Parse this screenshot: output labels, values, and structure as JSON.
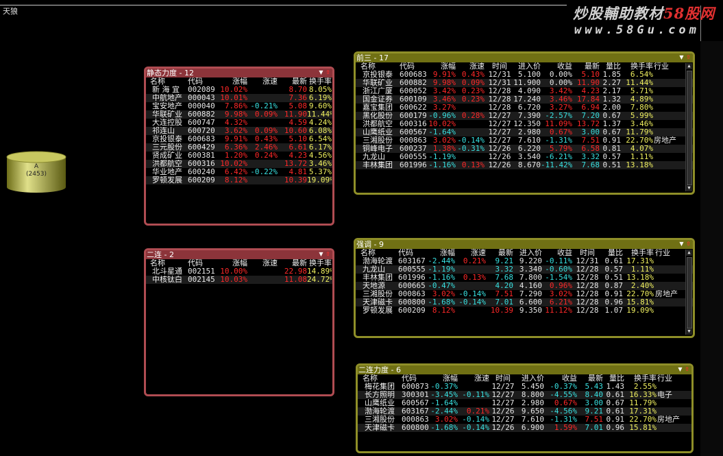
{
  "window": {
    "title": "天狼"
  },
  "watermark": {
    "line1_pre": "炒股輔助教材",
    "line1_brand": "58股网",
    "line2": "www.58Gu.com"
  },
  "source_node": {
    "label": "A",
    "count": "(2453)"
  },
  "colors": {
    "red_border": "#b04c52",
    "olive_border": "#8f8f28",
    "up": "#ff2828",
    "down": "#38e0e0"
  },
  "panels": [
    {
      "id": "jingtai",
      "title": "静态力度 - 12",
      "theme": "red",
      "columns": [
        "名称",
        "代码",
        "涨幅",
        "涨速",
        "最新",
        "换手率"
      ],
      "rows": [
        [
          "新 海 宜",
          "002089",
          "10.02%",
          "",
          "8.70",
          "8.05%"
        ],
        [
          "中航地产",
          "000043",
          "10.01%",
          "",
          "7.36",
          "6.19%"
        ],
        [
          "宝安地产",
          "000040",
          "7.86%",
          "-0.21%",
          "5.08",
          "9.60%"
        ],
        [
          "华联矿业",
          "600882",
          "9.98%",
          "0.09%",
          "11.90",
          "11.44%"
        ],
        [
          "大连控股",
          "600747",
          "4.32%",
          "",
          "4.59",
          "4.24%"
        ],
        [
          "祁连山",
          "600720",
          "3.62%",
          "0.09%",
          "10.60",
          "6.08%"
        ],
        [
          "京投银泰",
          "600683",
          "9.91%",
          "0.43%",
          "5.10",
          "6.54%"
        ],
        [
          "三元股份",
          "600429",
          "6.36%",
          "2.46%",
          "6.61",
          "6.17%"
        ],
        [
          "贤成矿业",
          "600381",
          "1.20%",
          "0.24%",
          "4.23",
          "4.56%"
        ],
        [
          "洪都航空",
          "600316",
          "10.02%",
          "",
          "13.72",
          "3.46%"
        ],
        [
          "华业地产",
          "600240",
          "6.42%",
          "-0.22%",
          "4.81",
          "5.37%"
        ],
        [
          "罗顿发展",
          "600209",
          "8.12%",
          "",
          "10.39",
          "19.09%"
        ]
      ]
    },
    {
      "id": "erlian",
      "title": "二连 - 2",
      "theme": "red",
      "columns": [
        "名称",
        "代码",
        "涨幅",
        "涨速",
        "最新",
        "换手率"
      ],
      "rows": [
        [
          "北斗星通",
          "002151",
          "10.00%",
          "",
          "22.98",
          "14.89%"
        ],
        [
          "中核钛白",
          "002145",
          "10.03%",
          "",
          "11.08",
          "24.72%"
        ]
      ]
    },
    {
      "id": "qiansan",
      "title": "前三 - 17",
      "theme": "olive",
      "columns": [
        "名称",
        "代码",
        "涨幅",
        "涨速",
        "时间",
        "进入价",
        "收益",
        "最新",
        "量比",
        "换手率",
        "行业"
      ],
      "rows": [
        [
          "京投银泰",
          "600683",
          "9.91%",
          "0.43%",
          "12/31",
          "5.100",
          "0.00%",
          "5.10",
          "1.85",
          "6.54%",
          ""
        ],
        [
          "华联矿业",
          "600882",
          "9.98%",
          "0.09%",
          "12/31",
          "11.900",
          "0.00%",
          "11.90",
          "2.27",
          "11.44%",
          ""
        ],
        [
          "浙江广厦",
          "600052",
          "3.42%",
          "0.23%",
          "12/28",
          "4.090",
          "3.42%",
          "4.23",
          "2.17",
          "5.71%",
          ""
        ],
        [
          "国金证券",
          "600109",
          "3.46%",
          "0.23%",
          "12/28",
          "17.240",
          "3.46%",
          "17.84",
          "1.32",
          "4.89%",
          ""
        ],
        [
          "嘉宝集团",
          "600622",
          "3.27%",
          "",
          "12/28",
          "6.720",
          "3.27%",
          "6.94",
          "2.00",
          "7.80%",
          ""
        ],
        [
          "黑化股份",
          "600179",
          "-0.96%",
          "0.28%",
          "12/27",
          "7.390",
          "-2.57%",
          "7.20",
          "0.67",
          "5.99%",
          ""
        ],
        [
          "洪都航空",
          "600316",
          "10.02%",
          "",
          "12/27",
          "12.350",
          "11.09%",
          "13.72",
          "1.37",
          "3.46%",
          ""
        ],
        [
          "山鹰纸业",
          "600567",
          "-1.64%",
          "",
          "12/27",
          "2.980",
          "0.67%",
          "3.00",
          "0.67",
          "11.79%",
          ""
        ],
        [
          "三湘股份",
          "000863",
          "3.02%",
          "-0.14%",
          "12/27",
          "7.610",
          "-1.31%",
          "7.51",
          "0.91",
          "22.70%",
          "房地产"
        ],
        [
          "铜峰电子",
          "600237",
          "1.38%",
          "-0.31%",
          "12/26",
          "6.220",
          "5.79%",
          "6.58",
          "0.81",
          "4.07%",
          ""
        ],
        [
          "九龙山",
          "600555",
          "-1.19%",
          "",
          "12/26",
          "3.540",
          "-6.21%",
          "3.32",
          "0.57",
          "1.11%",
          ""
        ],
        [
          "丰林集团",
          "601996",
          "-1.16%",
          "0.13%",
          "12/26",
          "8.670",
          "-11.42%",
          "7.68",
          "0.51",
          "13.18%",
          ""
        ]
      ]
    },
    {
      "id": "qiangdiao",
      "title": "强调 - 9",
      "theme": "olive",
      "columns": [
        "名称",
        "代码",
        "涨幅",
        "涨速",
        "最新",
        "进入价",
        "收益",
        "时间",
        "量比",
        "换手率",
        "行业"
      ],
      "rows": [
        [
          "渤海轮渡",
          "603167",
          "-2.44%",
          "0.21%",
          "9.21",
          "9.220",
          "-0.11%",
          "12/31",
          "0.61",
          "17.31%",
          ""
        ],
        [
          "九龙山",
          "600555",
          "-1.19%",
          "",
          "3.32",
          "3.340",
          "-0.60%",
          "12/28",
          "0.57",
          "1.11%",
          ""
        ],
        [
          "丰林集团",
          "601996",
          "-1.16%",
          "0.13%",
          "7.68",
          "7.800",
          "-1.54%",
          "12/28",
          "0.51",
          "13.18%",
          ""
        ],
        [
          "天地源",
          "600665",
          "-0.47%",
          "",
          "4.20",
          "4.160",
          "0.96%",
          "12/28",
          "0.87",
          "2.40%",
          ""
        ],
        [
          "三湘股份",
          "000863",
          "3.02%",
          "-0.14%",
          "7.51",
          "7.290",
          "3.02%",
          "12/28",
          "0.91",
          "22.70%",
          "房地产"
        ],
        [
          "天津磁卡",
          "600800",
          "-1.68%",
          "-0.14%",
          "7.01",
          "6.600",
          "6.21%",
          "12/28",
          "0.96",
          "15.81%",
          ""
        ],
        [
          "罗顿发展",
          "600209",
          "8.12%",
          "",
          "10.39",
          "9.350",
          "11.12%",
          "12/28",
          "1.07",
          "19.09%",
          ""
        ]
      ]
    },
    {
      "id": "erlian_lidu",
      "title": "二连力度 - 6",
      "theme": "olive",
      "columns": [
        "名称",
        "代码",
        "涨幅",
        "涨速",
        "时间",
        "进入价",
        "收益",
        "最新",
        "量比",
        "换手率",
        "行业"
      ],
      "rows": [
        [
          "梅花集团",
          "600873",
          "-0.37%",
          "",
          "12/27",
          "5.450",
          "-0.37%",
          "5.43",
          "1.43",
          "2.55%",
          ""
        ],
        [
          "长方照明",
          "300301",
          "-3.45%",
          "-0.11%",
          "12/27",
          "8.800",
          "-4.55%",
          "8.40",
          "0.61",
          "16.33%",
          "电子"
        ],
        [
          "山鹰纸业",
          "600567",
          "-1.64%",
          "",
          "12/27",
          "2.980",
          "0.67%",
          "3.00",
          "0.67",
          "11.79%",
          ""
        ],
        [
          "渤海轮渡",
          "603167",
          "-2.44%",
          "0.21%",
          "12/26",
          "9.650",
          "-4.56%",
          "9.21",
          "0.61",
          "17.31%",
          ""
        ],
        [
          "三湘股份",
          "000863",
          "3.02%",
          "-0.14%",
          "12/27",
          "7.610",
          "-1.31%",
          "7.51",
          "0.91",
          "22.70%",
          "房地产"
        ],
        [
          "天津磁卡",
          "600800",
          "-1.68%",
          "-0.14%",
          "12/26",
          "6.900",
          "1.59%",
          "7.01",
          "0.96",
          "15.81%",
          ""
        ]
      ]
    }
  ]
}
